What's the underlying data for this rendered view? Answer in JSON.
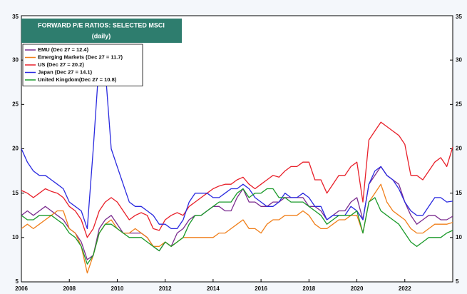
{
  "chart_data": {
    "type": "line",
    "title": "FORWARD P/E RATIOS: SELECTED MSCI",
    "subtitle": "(daily)",
    "x": [
      2006,
      2006.25,
      2006.5,
      2006.75,
      2007,
      2007.25,
      2007.5,
      2007.75,
      2008,
      2008.25,
      2008.5,
      2008.75,
      2009,
      2009.25,
      2009.5,
      2009.75,
      2010,
      2010.25,
      2010.5,
      2010.75,
      2011,
      2011.25,
      2011.5,
      2011.75,
      2012,
      2012.25,
      2012.5,
      2012.75,
      2013,
      2013.25,
      2013.5,
      2013.75,
      2014,
      2014.25,
      2014.5,
      2014.75,
      2015,
      2015.25,
      2015.5,
      2015.75,
      2016,
      2016.25,
      2016.5,
      2016.75,
      2017,
      2017.25,
      2017.5,
      2017.75,
      2018,
      2018.25,
      2018.5,
      2018.75,
      2019,
      2019.25,
      2019.5,
      2019.75,
      2020,
      2020.25,
      2020.5,
      2020.75,
      2021,
      2021.25,
      2021.5,
      2021.75,
      2022,
      2022.25,
      2022.5,
      2022.75,
      2023,
      2023.25,
      2023.5,
      2023.75,
      2024
    ],
    "series": [
      {
        "name": "EMU (Dec 27 = 12.4)",
        "color": "#7b2c8f",
        "values": [
          12.5,
          13,
          12.5,
          13,
          13.5,
          13,
          12.5,
          12,
          11,
          10.5,
          9.5,
          7.5,
          8,
          11,
          12,
          12.5,
          11.5,
          10.5,
          10.5,
          10.5,
          10.5,
          10,
          9,
          8.5,
          9.5,
          9,
          10.5,
          11,
          12,
          12.5,
          12.5,
          13,
          13.5,
          13.5,
          13,
          13,
          14.5,
          15.5,
          14,
          14,
          13.5,
          13.5,
          14,
          14,
          14.5,
          14.5,
          14.5,
          14.5,
          13.5,
          13.5,
          13,
          12,
          12.5,
          13,
          13,
          14,
          14.5,
          12,
          16,
          17,
          18,
          17,
          16.5,
          16,
          14,
          12.5,
          11.5,
          12,
          12.5,
          12.5,
          12,
          12,
          12.4
        ]
      },
      {
        "name": "Emerging Markets (Dec 27 = 11.7)",
        "color": "#f07f1a",
        "values": [
          11,
          11.5,
          11,
          11.5,
          12,
          12.5,
          13,
          13,
          11,
          10.5,
          9,
          6,
          8,
          10.5,
          11.5,
          12,
          11,
          10.5,
          10.5,
          11,
          10.5,
          10,
          9,
          9,
          9.5,
          9,
          9.5,
          10,
          10,
          10,
          10,
          10,
          10,
          10.5,
          10.5,
          11,
          11.5,
          12,
          11,
          11,
          10.5,
          11.5,
          12,
          12,
          12.5,
          12.5,
          12.5,
          13,
          12.5,
          11.5,
          11,
          11,
          11.5,
          12,
          12,
          12.5,
          12.5,
          10.5,
          14,
          15,
          16,
          14,
          13,
          12.5,
          12,
          11,
          10.5,
          10.5,
          11,
          11.5,
          11.5,
          11.5,
          11.7
        ]
      },
      {
        "name": "US  (Dec 27 = 20.2)",
        "color": "#e8202a",
        "values": [
          15.3,
          15,
          14.5,
          15,
          15.5,
          15.2,
          15,
          14.5,
          13.5,
          13,
          12,
          10,
          11,
          13,
          14,
          14.5,
          14,
          13,
          12,
          12.5,
          12.8,
          12.5,
          11,
          10.8,
          12,
          12.5,
          12.8,
          12.5,
          13.5,
          14,
          14.5,
          15,
          15.5,
          15.8,
          16,
          16,
          16.5,
          16.8,
          16,
          15.5,
          16,
          16.5,
          17,
          16.8,
          17.5,
          18,
          18,
          18.5,
          18.5,
          16.5,
          16.5,
          15,
          16,
          17,
          17,
          18,
          18.5,
          14,
          21,
          22,
          23,
          22.5,
          22,
          21.5,
          20.5,
          17,
          17,
          16.5,
          17.5,
          18.5,
          19,
          18,
          20.2
        ]
      },
      {
        "name": "Japan (Dec 27 = 14.1)",
        "color": "#2a2adf",
        "values": [
          20,
          18.5,
          17.5,
          17,
          17,
          16.5,
          16,
          15.5,
          14,
          13.5,
          13,
          11,
          20,
          30,
          29,
          20,
          18,
          16,
          14,
          13.5,
          13.5,
          13,
          12.5,
          11.5,
          11.5,
          11,
          11,
          12,
          14,
          15,
          15,
          15,
          14.5,
          14.5,
          15,
          15.5,
          15.5,
          16,
          15.5,
          14.5,
          14,
          13.5,
          13.5,
          14,
          15,
          14.5,
          14.5,
          15,
          14.5,
          13.5,
          13.5,
          12,
          12.5,
          12.5,
          12.5,
          13.5,
          13,
          12,
          16,
          17.5,
          18,
          17,
          16.5,
          15.5,
          14,
          13,
          12.5,
          12.5,
          13.5,
          14.5,
          14.5,
          14,
          14.1
        ]
      },
      {
        "name": "United Kingdom(Dec 27 = 10.8)",
        "color": "#1a9a2a",
        "values": [
          12.5,
          12,
          12,
          12.5,
          12.5,
          12.5,
          12,
          11.5,
          10.5,
          10,
          9,
          7,
          8,
          10.5,
          11.5,
          11.5,
          11,
          10.5,
          10,
          10,
          10,
          9.5,
          9,
          8.5,
          9.5,
          9,
          9.5,
          10,
          11.5,
          12.5,
          12.5,
          13,
          13.5,
          14,
          14,
          14,
          15,
          15.5,
          14.5,
          15,
          15,
          15.5,
          15.5,
          14.5,
          14.5,
          14,
          14,
          14,
          13.5,
          13,
          12.5,
          11.5,
          12,
          12.5,
          12.5,
          12.5,
          13,
          10.5,
          14,
          14.5,
          13,
          12.5,
          12,
          11.5,
          10.5,
          9.5,
          9,
          9.5,
          10,
          10,
          10,
          10.5,
          10.8
        ]
      }
    ],
    "xlim": [
      2006,
      2024
    ],
    "xticks": [
      2006,
      2008,
      2010,
      2012,
      2014,
      2016,
      2018,
      2020,
      2022
    ],
    "ylim": [
      5,
      35
    ],
    "yticks": [
      5,
      10,
      15,
      20,
      25,
      30,
      35
    ],
    "legend": "upper left",
    "title_color": "#2e7d6e"
  }
}
